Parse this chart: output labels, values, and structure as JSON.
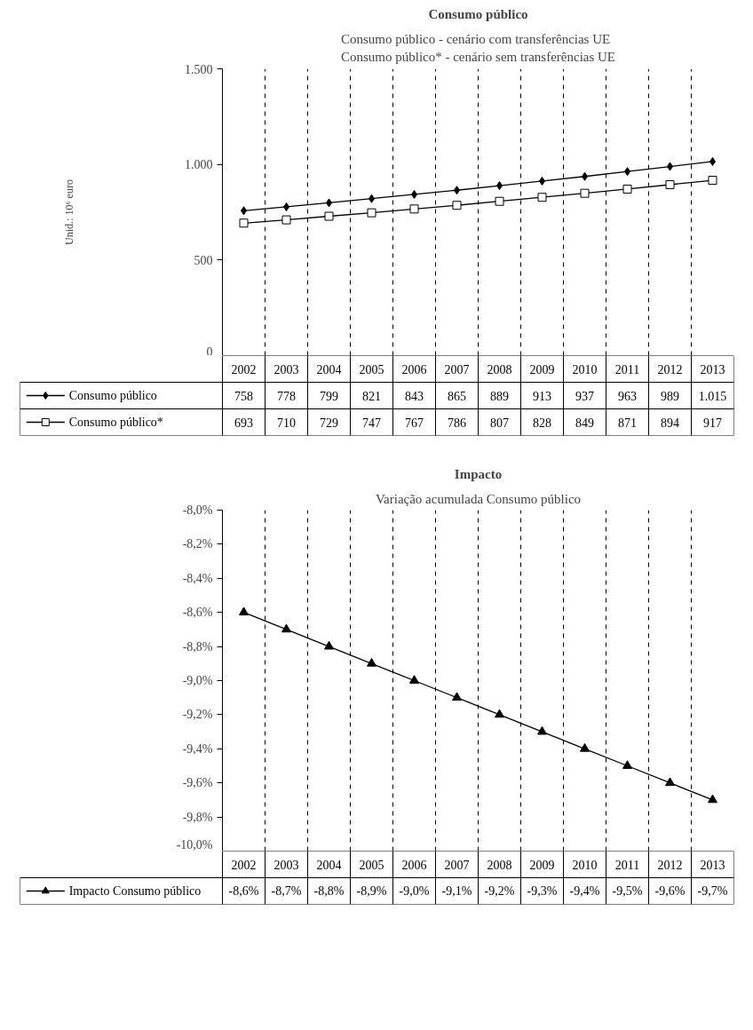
{
  "chart_data": [
    {
      "type": "line",
      "title": "Consumo público",
      "subtitle": "Consumo público - cenário com transferências UE\nConsumo público* - cenário sem transferências UE",
      "ylabel": "Unid.: 10⁶ euro",
      "categories": [
        "2002",
        "2003",
        "2004",
        "2005",
        "2006",
        "2007",
        "2008",
        "2009",
        "2010",
        "2011",
        "2012",
        "2013"
      ],
      "series": [
        {
          "name": "Consumo público",
          "color": "#000000",
          "marker": "diamond",
          "values": [
            758,
            778,
            799,
            821,
            843,
            865,
            889,
            913,
            937,
            963,
            989,
            1015
          ],
          "value_labels": [
            "758",
            "778",
            "799",
            "821",
            "843",
            "865",
            "889",
            "913",
            "937",
            "963",
            "989",
            "1.015"
          ]
        },
        {
          "name": "Consumo público*",
          "color": "#000000",
          "marker": "square",
          "values": [
            693,
            710,
            729,
            747,
            767,
            786,
            807,
            828,
            849,
            871,
            894,
            917
          ],
          "value_labels": [
            "693",
            "710",
            "729",
            "747",
            "767",
            "786",
            "807",
            "828",
            "849",
            "871",
            "894",
            "917"
          ]
        }
      ],
      "ylim": [
        0,
        1500
      ],
      "yticks": [
        0,
        500,
        {
          "value": 1000,
          "label": "1.000"
        },
        {
          "value": 1500,
          "label": "1.500"
        }
      ],
      "grid": "x",
      "legend": "bottom",
      "data_labels": true
    },
    {
      "type": "line",
      "title": "Impacto",
      "subtitle": "Variação acumulada Consumo público",
      "categories": [
        "2002",
        "2003",
        "2004",
        "2005",
        "2006",
        "2007",
        "2008",
        "2009",
        "2010",
        "2011",
        "2012",
        "2013"
      ],
      "series": [
        {
          "name": "Impacto Consumo público",
          "color": "#000000",
          "marker": "triangle",
          "values": [
            -8.6,
            -8.7,
            -8.8,
            -8.9,
            -9.0,
            -9.1,
            -9.2,
            -9.3,
            -9.4,
            -9.5,
            -9.6,
            -9.7
          ],
          "value_labels": [
            "-8,6%",
            "-8,7%",
            "-8,8%",
            "-8,9%",
            "-9,0%",
            "-9,1%",
            "-9,2%",
            "-9,3%",
            "-9,4%",
            "-9,5%",
            "-9,6%",
            "-9,7%"
          ]
        }
      ],
      "ylim": [
        -10,
        -8
      ],
      "yticks": [
        {
          "value": -10,
          "label": "-10,0%"
        },
        {
          "value": -9.8,
          "label": "-9,8%"
        },
        {
          "value": -9.6,
          "label": "-9,6%"
        },
        {
          "value": -9.4,
          "label": "-9,4%"
        },
        {
          "value": -9.2,
          "label": "-9,2%"
        },
        {
          "value": -9,
          "label": "-9,0%"
        },
        {
          "value": -8.8,
          "label": "-8,8%"
        },
        {
          "value": -8.6,
          "label": "-8,6%"
        },
        {
          "value": -8.4,
          "label": "-8,4%"
        },
        {
          "value": -8.2,
          "label": "-8,2%"
        },
        {
          "value": -8,
          "label": "-8,0%"
        }
      ],
      "grid": "x",
      "legend": "bottom",
      "data_labels": true
    }
  ]
}
